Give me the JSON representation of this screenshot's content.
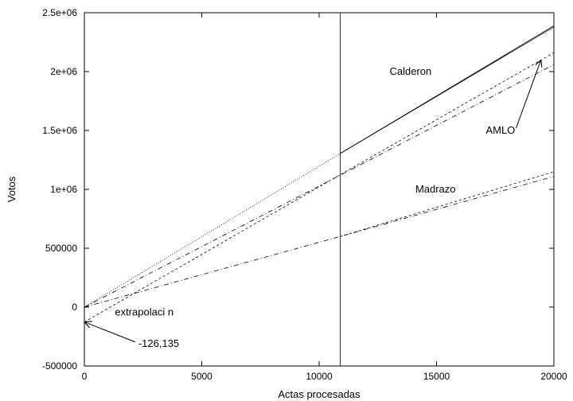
{
  "chart_data": {
    "type": "line",
    "xlabel": "Actas procesadas",
    "ylabel": "Votos",
    "xlim": [
      0,
      20000
    ],
    "ylim": [
      -500000,
      2500000
    ],
    "x_ticks": [
      {
        "value": 0,
        "label": "0"
      },
      {
        "value": 5000,
        "label": "5000"
      },
      {
        "value": 10000,
        "label": "10000"
      },
      {
        "value": 15000,
        "label": "15000"
      },
      {
        "value": 20000,
        "label": "20000"
      }
    ],
    "y_ticks": [
      {
        "value": -500000,
        "label": "-500000"
      },
      {
        "value": 0,
        "label": "0"
      },
      {
        "value": 500000,
        "label": "500000"
      },
      {
        "value": 1000000,
        "label": "1e+06"
      },
      {
        "value": 1500000,
        "label": "1.5e+06"
      },
      {
        "value": 2000000,
        "label": "2e+06"
      },
      {
        "value": 2500000,
        "label": "2.5e+06"
      }
    ],
    "grid": false,
    "vertical_marker": {
      "x": 10900
    },
    "series": [
      {
        "name": "Calderon",
        "style": "dotted",
        "points": [
          [
            0,
            0
          ],
          [
            10900,
            1305000
          ]
        ]
      },
      {
        "name": "Calderon",
        "style": "solid",
        "points": [
          [
            10900,
            1305000
          ],
          [
            20000,
            2380000
          ]
        ]
      },
      {
        "name": "Calderon",
        "style": "solid",
        "points": [
          [
            10900,
            1305000
          ],
          [
            20000,
            2390000
          ]
        ]
      },
      {
        "name": "AMLO",
        "style": "dashed",
        "points": [
          [
            0,
            -126135
          ],
          [
            10900,
            1125000
          ],
          [
            20000,
            2160000
          ]
        ]
      },
      {
        "name": "AMLO",
        "style": "dashdot",
        "points": [
          [
            0,
            0
          ],
          [
            10900,
            1120000
          ],
          [
            20000,
            2060000
          ]
        ]
      },
      {
        "name": "Madrazo",
        "style": "dashdot",
        "points": [
          [
            0,
            0
          ],
          [
            10900,
            600000
          ],
          [
            20000,
            1110000
          ]
        ]
      },
      {
        "name": "Madrazo",
        "style": "dashed",
        "points": [
          [
            10900,
            600000
          ],
          [
            20000,
            1150000
          ]
        ]
      }
    ],
    "annotations": [
      {
        "id": "calderon",
        "text": "Calderon",
        "x": 13000,
        "y": 2000000
      },
      {
        "id": "amlo",
        "text": "AMLO",
        "x": 17100,
        "y": 1500000,
        "arrow_to": [
          19450,
          2100000
        ]
      },
      {
        "id": "madrazo",
        "text": "Madrazo",
        "x": 14100,
        "y": 1000000
      },
      {
        "id": "extrapolacion",
        "text": "extrapolaci n",
        "x": 1300,
        "y": -45000
      },
      {
        "id": "intercept",
        "text": "-126,135",
        "x": 2300,
        "y": -310000,
        "arrow_to": [
          0,
          -126135
        ]
      }
    ]
  }
}
